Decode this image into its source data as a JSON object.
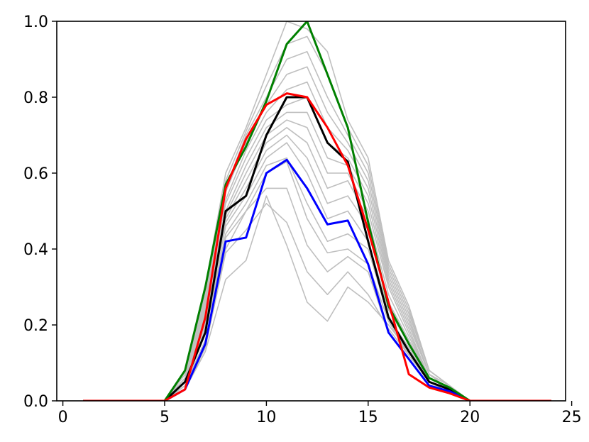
{
  "chart_data": {
    "type": "line",
    "title": "",
    "xlabel": "",
    "ylabel": "",
    "xlim": [
      -0.3,
      24.7
    ],
    "ylim": [
      0,
      1
    ],
    "xticks": [
      0,
      5,
      10,
      15,
      20,
      25
    ],
    "yticks": [
      0.0,
      0.2,
      0.4,
      0.6,
      0.8,
      1.0
    ],
    "xtick_labels": [
      "0",
      "5",
      "10",
      "15",
      "20",
      "25"
    ],
    "ytick_labels": [
      "0.0",
      "0.2",
      "0.4",
      "0.6",
      "0.8",
      "1.0"
    ],
    "grid": false,
    "legend": "none",
    "x": [
      1,
      2,
      3,
      4,
      5,
      6,
      7,
      8,
      9,
      10,
      11,
      12,
      13,
      14,
      15,
      16,
      17,
      18,
      19,
      20,
      21,
      22,
      23,
      24
    ],
    "background_series": {
      "color": "#bfbfbf",
      "values": [
        [
          0,
          0,
          0,
          0,
          0,
          0.03,
          0.13,
          0.32,
          0.37,
          0.54,
          0.41,
          0.26,
          0.21,
          0.3,
          0.26,
          0.2,
          0.13,
          0.05,
          0.02,
          0,
          0,
          0,
          0,
          0
        ],
        [
          0,
          0,
          0,
          0,
          0,
          0.03,
          0.14,
          0.39,
          0.45,
          0.52,
          0.47,
          0.34,
          0.28,
          0.34,
          0.28,
          0.19,
          0.12,
          0.05,
          0.02,
          0,
          0,
          0,
          0,
          0
        ],
        [
          0,
          0,
          0,
          0,
          0,
          0.04,
          0.16,
          0.4,
          0.5,
          0.56,
          0.56,
          0.41,
          0.34,
          0.38,
          0.34,
          0.18,
          0.11,
          0.04,
          0.02,
          0,
          0,
          0,
          0,
          0
        ],
        [
          0,
          0,
          0,
          0,
          0,
          0.04,
          0.18,
          0.43,
          0.5,
          0.6,
          0.63,
          0.48,
          0.39,
          0.4,
          0.36,
          0.21,
          0.12,
          0.05,
          0.02,
          0,
          0,
          0,
          0,
          0
        ],
        [
          0,
          0,
          0,
          0,
          0,
          0.04,
          0.19,
          0.44,
          0.52,
          0.62,
          0.64,
          0.52,
          0.42,
          0.44,
          0.4,
          0.22,
          0.14,
          0.05,
          0.02,
          0,
          0,
          0,
          0,
          0
        ],
        [
          0,
          0,
          0,
          0,
          0,
          0.05,
          0.2,
          0.46,
          0.54,
          0.64,
          0.68,
          0.6,
          0.48,
          0.5,
          0.42,
          0.24,
          0.15,
          0.05,
          0.02,
          0,
          0,
          0,
          0,
          0
        ],
        [
          0,
          0,
          0,
          0,
          0,
          0.05,
          0.21,
          0.47,
          0.56,
          0.66,
          0.7,
          0.64,
          0.52,
          0.54,
          0.46,
          0.26,
          0.16,
          0.06,
          0.03,
          0,
          0,
          0,
          0,
          0
        ],
        [
          0,
          0,
          0,
          0,
          0,
          0.05,
          0.22,
          0.48,
          0.58,
          0.68,
          0.72,
          0.68,
          0.56,
          0.58,
          0.48,
          0.28,
          0.17,
          0.06,
          0.03,
          0,
          0,
          0,
          0,
          0
        ],
        [
          0,
          0,
          0,
          0,
          0,
          0.05,
          0.23,
          0.49,
          0.6,
          0.7,
          0.74,
          0.72,
          0.6,
          0.6,
          0.5,
          0.3,
          0.18,
          0.06,
          0.03,
          0,
          0,
          0,
          0,
          0
        ],
        [
          0,
          0,
          0,
          0,
          0,
          0.06,
          0.24,
          0.5,
          0.62,
          0.72,
          0.76,
          0.76,
          0.64,
          0.62,
          0.52,
          0.31,
          0.19,
          0.06,
          0.03,
          0,
          0,
          0,
          0,
          0
        ],
        [
          0,
          0,
          0,
          0,
          0,
          0.06,
          0.25,
          0.52,
          0.64,
          0.74,
          0.78,
          0.8,
          0.68,
          0.64,
          0.54,
          0.32,
          0.2,
          0.07,
          0.03,
          0,
          0,
          0,
          0,
          0
        ],
        [
          0,
          0,
          0,
          0,
          0,
          0.06,
          0.26,
          0.53,
          0.66,
          0.76,
          0.82,
          0.84,
          0.72,
          0.66,
          0.56,
          0.33,
          0.21,
          0.07,
          0.03,
          0,
          0,
          0,
          0,
          0
        ],
        [
          0,
          0,
          0,
          0,
          0,
          0.06,
          0.27,
          0.55,
          0.68,
          0.78,
          0.86,
          0.88,
          0.76,
          0.68,
          0.58,
          0.34,
          0.22,
          0.07,
          0.04,
          0,
          0,
          0,
          0,
          0
        ],
        [
          0,
          0,
          0,
          0,
          0,
          0.07,
          0.28,
          0.56,
          0.7,
          0.8,
          0.9,
          0.92,
          0.8,
          0.7,
          0.6,
          0.35,
          0.23,
          0.08,
          0.04,
          0,
          0,
          0,
          0,
          0
        ],
        [
          0,
          0,
          0,
          0,
          0,
          0.07,
          0.29,
          0.58,
          0.71,
          0.83,
          0.94,
          0.96,
          0.86,
          0.72,
          0.62,
          0.36,
          0.24,
          0.08,
          0.04,
          0,
          0,
          0,
          0,
          0
        ],
        [
          0,
          0,
          0,
          0,
          0,
          0.07,
          0.3,
          0.6,
          0.72,
          0.86,
          1.0,
          0.98,
          0.92,
          0.74,
          0.64,
          0.37,
          0.25,
          0.08,
          0.04,
          0,
          0,
          0,
          0,
          0
        ]
      ]
    },
    "series": [
      {
        "color": "#000000",
        "values": [
          0,
          0,
          0,
          0,
          0,
          0.05,
          0.18,
          0.5,
          0.54,
          0.7,
          0.8,
          0.8,
          0.68,
          0.63,
          0.42,
          0.22,
          0.13,
          0.05,
          0.03,
          0,
          0,
          0,
          0,
          0
        ]
      },
      {
        "color": "#0000ff",
        "values": [
          0,
          0,
          0,
          0,
          0,
          0.03,
          0.15,
          0.42,
          0.43,
          0.6,
          0.635,
          0.56,
          0.465,
          0.475,
          0.36,
          0.18,
          0.11,
          0.04,
          0.025,
          0,
          0,
          0,
          0,
          0
        ]
      },
      {
        "color": "#008000",
        "values": [
          0,
          0,
          0,
          0,
          0,
          0.08,
          0.3,
          0.57,
          0.67,
          0.79,
          0.94,
          1.0,
          0.86,
          0.72,
          0.47,
          0.25,
          0.15,
          0.06,
          0.035,
          0,
          0,
          0,
          0,
          0
        ]
      },
      {
        "color": "#ff0000",
        "values": [
          0,
          0,
          0,
          0,
          0,
          0.03,
          0.22,
          0.56,
          0.69,
          0.78,
          0.81,
          0.8,
          0.72,
          0.62,
          0.45,
          0.26,
          0.07,
          0.035,
          0.02,
          0,
          0,
          0,
          0,
          0
        ]
      }
    ]
  }
}
